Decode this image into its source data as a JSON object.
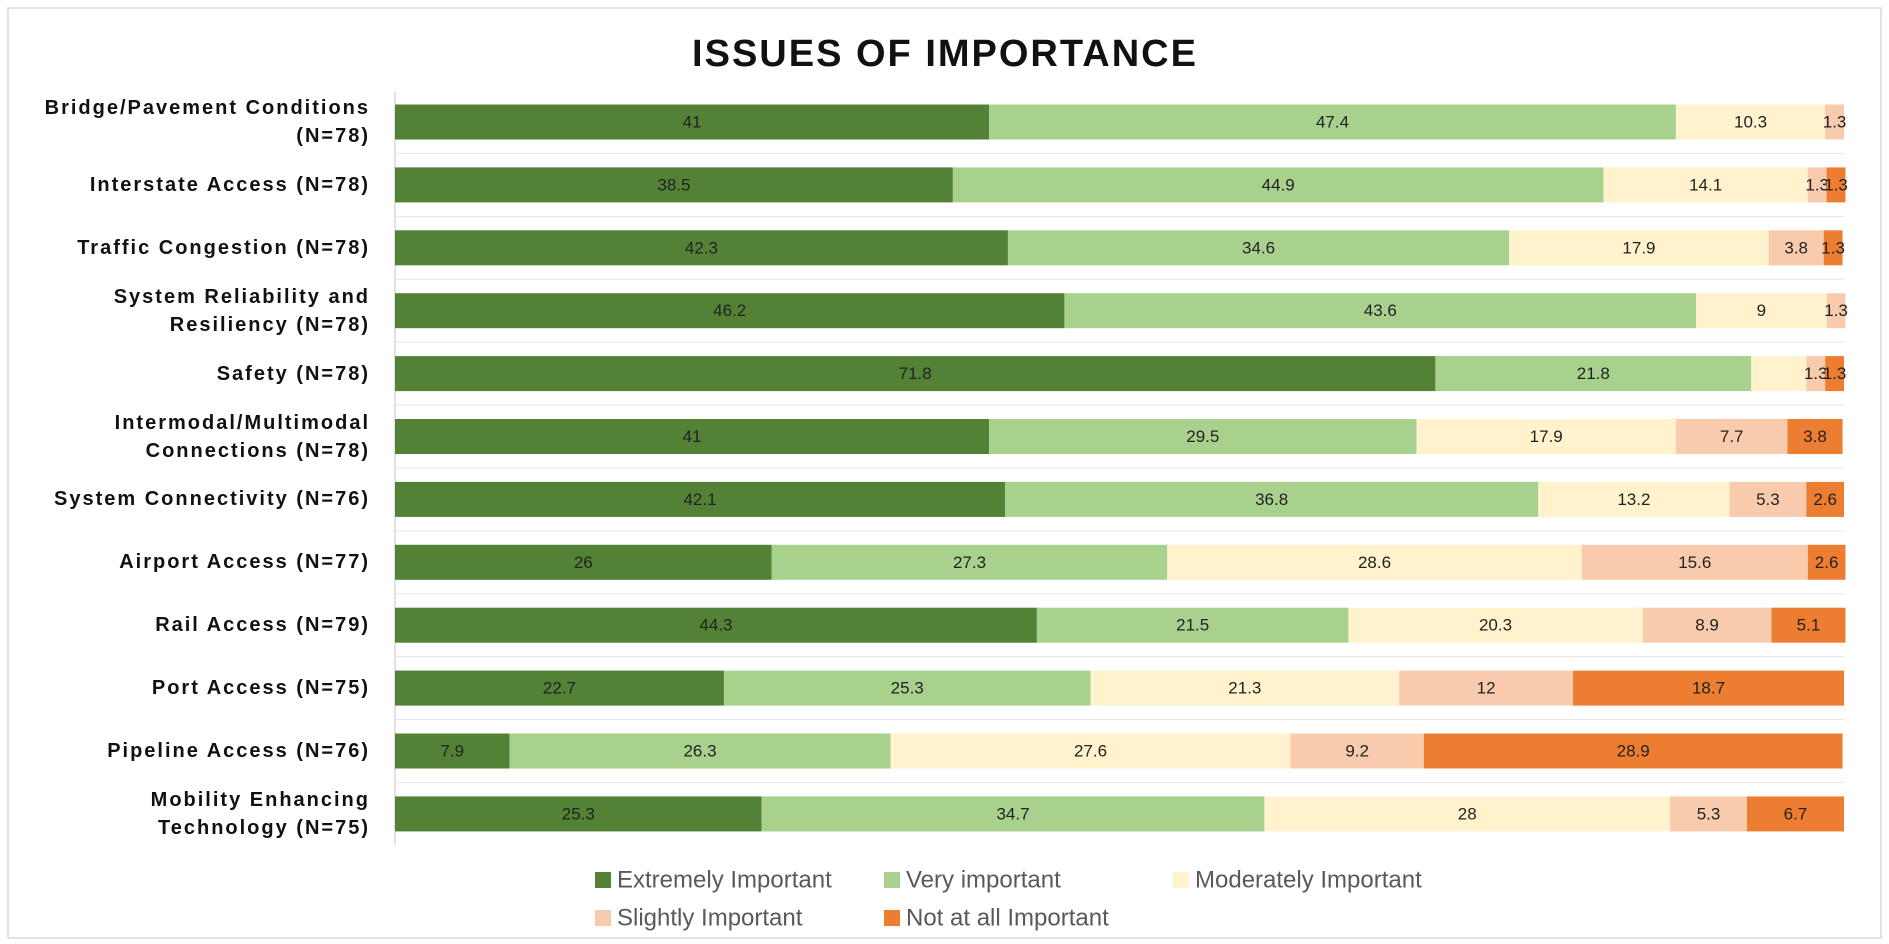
{
  "chart_data": {
    "type": "stacked_bar_horizontal",
    "title": "ISSUES OF IMPORTANCE",
    "categories": [
      "Bridge/Pavement Conditions (N=78)",
      "Interstate Access (N=78)",
      "Traffic Congestion (N=78)",
      "System Reliability and Resiliency (N=78)",
      "Safety (N=78)",
      "Intermodal/Multimodal Connections (N=78)",
      "System Connectivity (N=76)",
      "Airport Access (N=77)",
      "Rail Access (N=79)",
      "Port Access (N=75)",
      "Pipeline Access (N=76)",
      "Mobility Enhancing Technology (N=75)"
    ],
    "xlim": [
      0,
      100
    ],
    "legend": "bottom",
    "series": [
      {
        "name": "Extremely Important",
        "color": "#538135",
        "values": [
          41,
          38.5,
          42.3,
          46.2,
          71.8,
          41,
          42.1,
          26,
          44.3,
          22.7,
          7.9,
          25.3
        ]
      },
      {
        "name": "Very important",
        "color": "#a9d18e",
        "values": [
          47.4,
          44.9,
          34.6,
          43.6,
          21.8,
          29.5,
          36.8,
          27.3,
          21.5,
          25.3,
          26.3,
          34.7
        ]
      },
      {
        "name": "Moderately Important",
        "color": "#fff2cc",
        "values": [
          10.3,
          14.1,
          17.9,
          9,
          3.8,
          17.9,
          13.2,
          28.6,
          20.3,
          21.3,
          27.6,
          28
        ],
        "value_labels": [
          "10.3",
          "14.1",
          "17.9",
          "9",
          null,
          "17.9",
          "13.2",
          "28.6",
          "20.3",
          "21.3",
          "27.6",
          "28"
        ]
      },
      {
        "name": "Slightly Important",
        "color": "#f8cbad",
        "values": [
          1.3,
          1.3,
          3.8,
          1.3,
          1.3,
          7.7,
          5.3,
          15.6,
          8.9,
          12,
          9.2,
          5.3
        ]
      },
      {
        "name": "Not at all Important",
        "color": "#ed7d31",
        "values": [
          0,
          1.3,
          1.3,
          0,
          1.3,
          3.8,
          2.6,
          2.6,
          5.1,
          18.7,
          28.9,
          6.7
        ],
        "value_labels": [
          null,
          "1.3",
          "1.3",
          null,
          "1.3",
          "3.8",
          "2.6",
          "2.6",
          "5.1",
          "18.7",
          "28.9",
          "6.7"
        ]
      }
    ]
  }
}
